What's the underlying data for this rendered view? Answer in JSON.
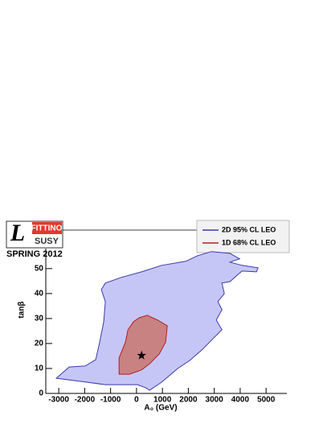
{
  "chart_data": {
    "type": "contour",
    "x_label": "A₀ (GeV)",
    "y_label": "tanβ",
    "xlim": [
      -3500,
      5800
    ],
    "ylim": [
      0,
      58
    ],
    "xticks": [
      -3000,
      -2000,
      -1000,
      0,
      1000,
      2000,
      3000,
      4000,
      5000
    ],
    "yticks": [
      0,
      10,
      20,
      30,
      40,
      50
    ],
    "logo": {
      "top": "FITTINO",
      "bottom": "SUSY",
      "caption": "SPRING 2012"
    },
    "series": [
      {
        "name": "2D 95% CL LEO",
        "color": "#3a3aa8",
        "fill": "#c6c6f6",
        "x": [
          -3093,
          -2597,
          -1977,
          -1574,
          -1419,
          -1264,
          -1202,
          -1357,
          -1202,
          -581,
          194,
          969,
          1899,
          2364,
          2891,
          3605,
          3977,
          3605,
          4070,
          4690,
          4628,
          4070,
          3605,
          3295,
          3388,
          3140,
          3295,
          3078,
          3295,
          2984,
          2519,
          2054,
          1589,
          969,
          504,
          349,
          39,
          -1202,
          -2132
        ],
        "y": [
          6.1,
          10.6,
          11.0,
          13.5,
          20.6,
          28.7,
          36.8,
          41.6,
          44.2,
          46.5,
          48.7,
          51.3,
          52.9,
          55.2,
          56.8,
          56.1,
          53.9,
          52.6,
          51.3,
          50.3,
          48.7,
          49.0,
          44.8,
          44.2,
          40.0,
          36.8,
          33.5,
          29.4,
          25.5,
          22.3,
          17.4,
          13.2,
          10.0,
          4.5,
          1.3,
          2.3,
          3.5,
          3.5,
          4.8
        ]
      },
      {
        "name": "1D 68% CL LEO",
        "color": "#b02020",
        "fill": "#c88282",
        "x": [
          -674,
          -674,
          -426,
          -333,
          -116,
          101,
          411,
          814,
          1186,
          1124,
          876,
          504,
          194,
          -271
        ],
        "y": [
          7.7,
          14.2,
          20.6,
          25.5,
          28.7,
          30.3,
          31.3,
          29.4,
          27.1,
          20.6,
          15.8,
          11.9,
          9.4,
          7.7
        ]
      }
    ],
    "best_fit": {
      "x": 194,
      "y": 15.2
    }
  }
}
